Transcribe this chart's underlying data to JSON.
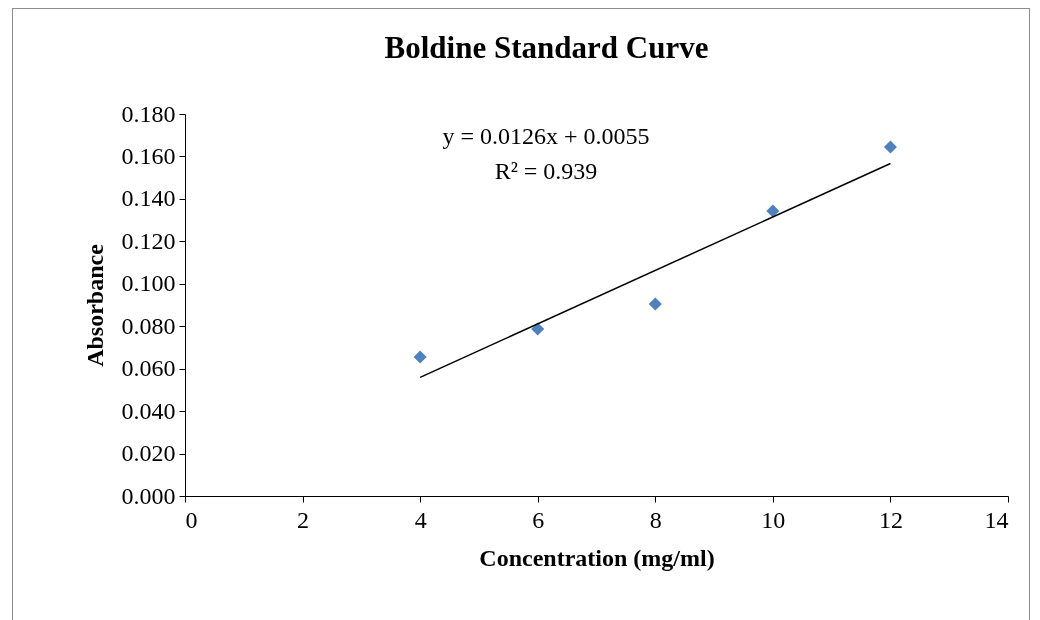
{
  "chart_data": {
    "type": "scatter",
    "title": "Boldine Standard Curve",
    "xlabel": "Concentration (mg/ml)",
    "ylabel": "Absorbance",
    "annotations": [
      "y = 0.0126x + 0.0055",
      "R² = 0.939"
    ],
    "series": [
      {
        "type": "scatter",
        "marker": "diamond",
        "color": "#4f81bd",
        "x": [
          4,
          6,
          8,
          10,
          12
        ],
        "values": [
          0.0655,
          0.0787,
          0.0905,
          0.1343,
          0.1645
        ]
      },
      {
        "type": "line",
        "color": "#000000",
        "x": [
          4,
          12
        ],
        "values": [
          0.0559,
          0.1567
        ]
      }
    ],
    "xlim": [
      0,
      14
    ],
    "xticks": [
      0,
      2,
      4,
      6,
      8,
      10,
      12,
      14
    ],
    "ylim": [
      0,
      0.18
    ],
    "yticks": [
      {
        "value": 0,
        "label": "0.000"
      },
      {
        "value": 0.02,
        "label": "0.020"
      },
      {
        "value": 0.04,
        "label": "0.040"
      },
      {
        "value": 0.06,
        "label": "0.060"
      },
      {
        "value": 0.08,
        "label": "0.080"
      },
      {
        "value": 0.1,
        "label": "0.100"
      },
      {
        "value": 0.12,
        "label": "0.120"
      },
      {
        "value": 0.14,
        "label": "0.140"
      },
      {
        "value": 0.16,
        "label": "0.160"
      },
      {
        "value": 0.18,
        "label": "0.180"
      }
    ],
    "grid": false,
    "line_style": "solid"
  }
}
